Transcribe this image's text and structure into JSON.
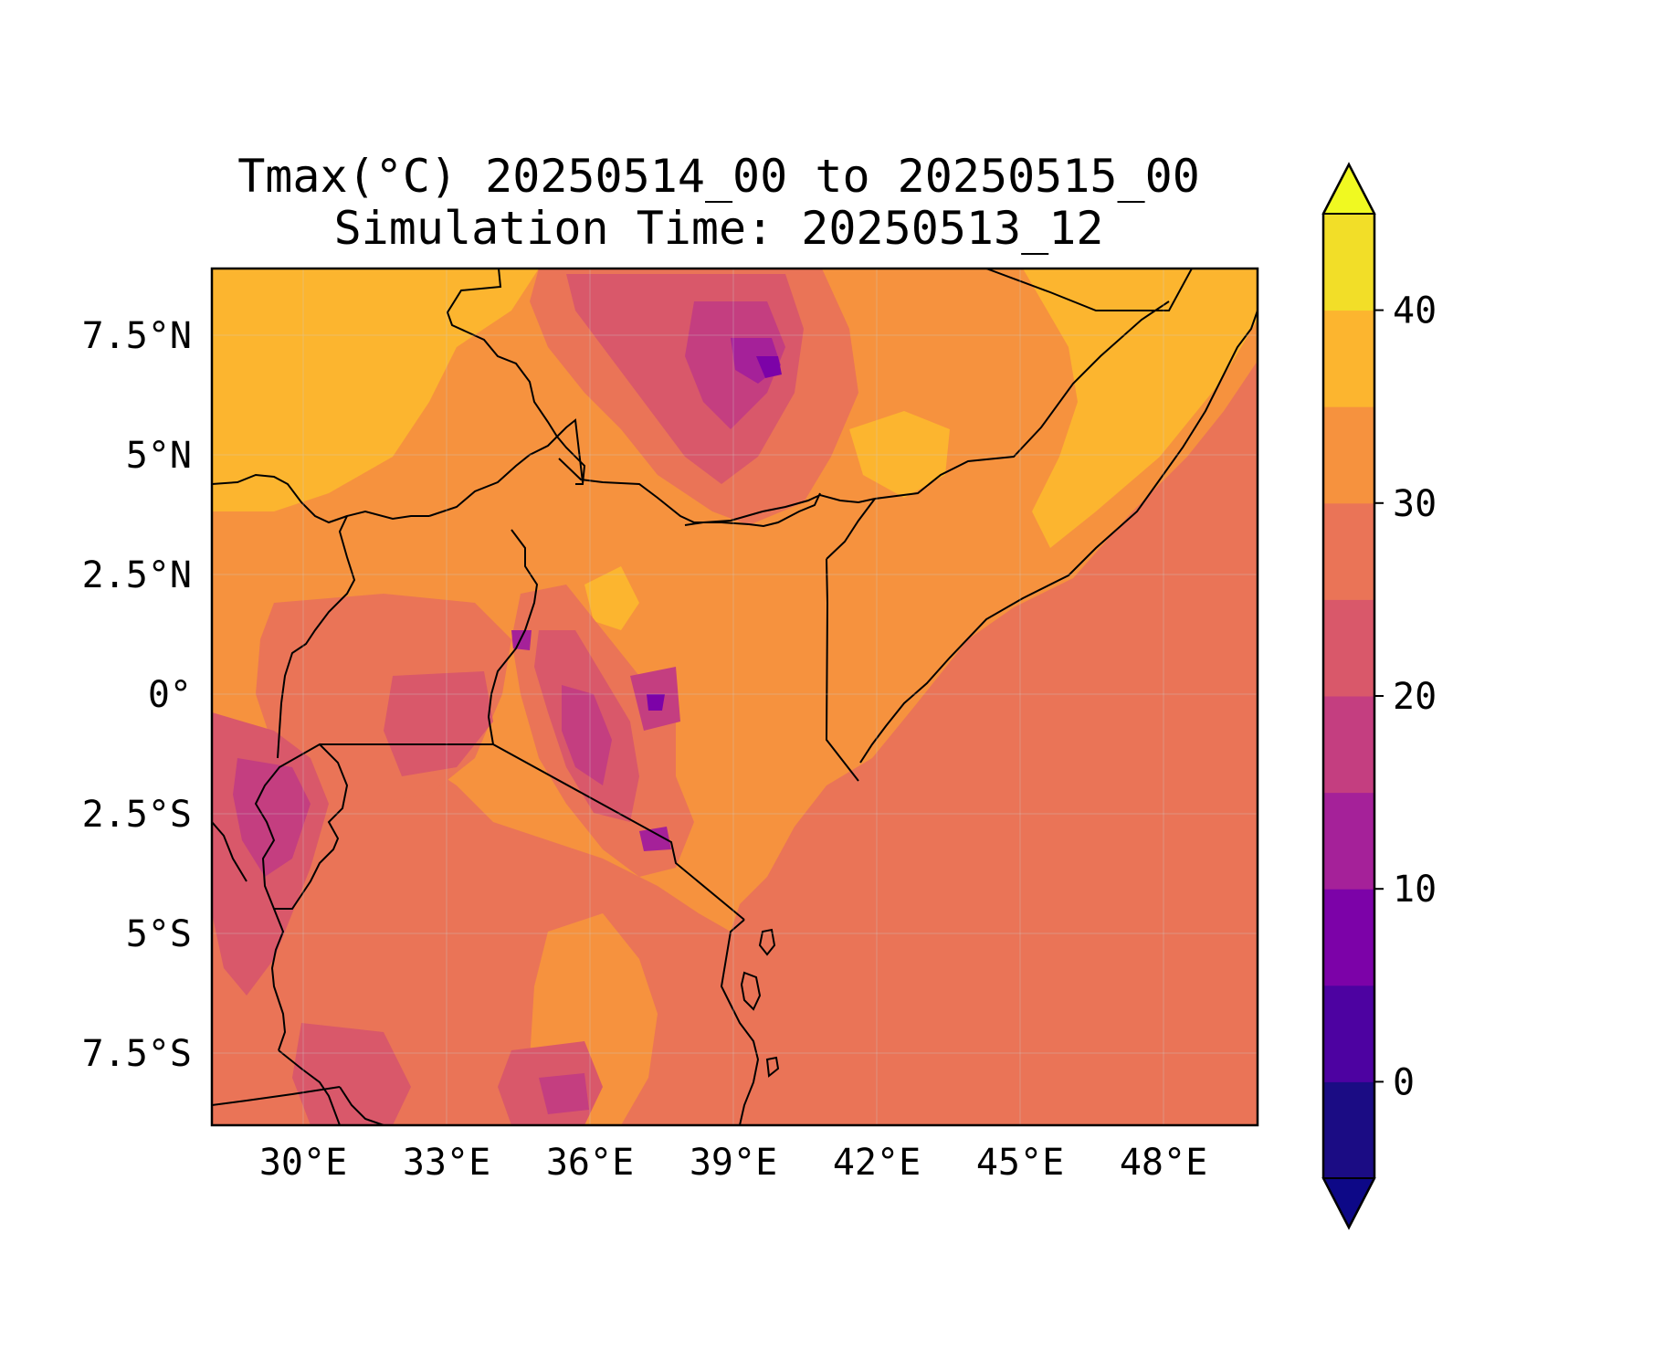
{
  "map": {
    "title_line1": "Tmax(°C) 20250514_00 to 20250515_00",
    "title_line2": "Simulation Time: 20250513_12",
    "lon_ticks": [
      "30°E",
      "33°E",
      "36°E",
      "39°E",
      "42°E",
      "45°E",
      "48°E"
    ],
    "lat_ticks": [
      "7.5°N",
      "5°N",
      "2.5°N",
      "0°",
      "2.5°S",
      "5°S",
      "7.5°S"
    ],
    "extent": {
      "lon_min": 28.1,
      "lon_max": 50.0,
      "lat_min": -9.0,
      "lat_max": 8.9
    },
    "colormap": "plasma"
  },
  "colorbar": {
    "levels": [
      -5,
      0,
      5,
      10,
      15,
      20,
      25,
      30,
      35,
      40,
      45
    ],
    "tick_labels": [
      "0",
      "10",
      "20",
      "30",
      "40"
    ],
    "extend": "both",
    "colors": [
      "#1b0c84",
      "#4d02a1",
      "#7c02a8",
      "#a52199",
      "#c43e80",
      "#d9586a",
      "#ea7457",
      "#f6923e",
      "#fcb52f",
      "#f2de28"
    ],
    "under_color": "#0d0887",
    "over_color": "#f0f921"
  }
}
